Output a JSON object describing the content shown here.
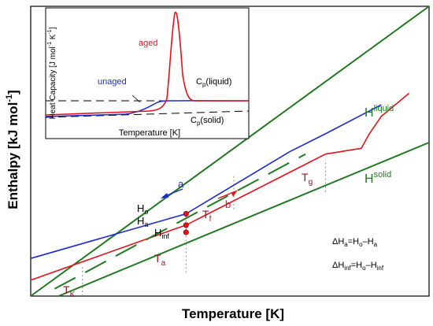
{
  "colors": {
    "blue": "#1a2bd6",
    "red": "#e3121b",
    "green": "#1f7a1f",
    "darkred": "#8b1a1a",
    "dash": "#000000"
  },
  "chart_data": [
    {
      "type": "line",
      "xlabel": "Temperature [K]",
      "ylabel": "Enthalpy [kJ mol",
      "ylabel_sup": "-1",
      "ylabel_end": "]",
      "xlim": [
        0,
        10
      ],
      "ylim": [
        0,
        10
      ],
      "series": [
        {
          "id": "H_liquid",
          "color": "green",
          "points": [
            [
              0.0,
              0.0
            ],
            [
              10.0,
              10.0
            ]
          ]
        },
        {
          "id": "H_solid",
          "color": "green",
          "points": [
            [
              0.7,
              0.0
            ],
            [
              10.0,
              5.3
            ]
          ]
        },
        {
          "id": "blue",
          "color": "blue",
          "points": [
            [
              0.0,
              1.3
            ],
            [
              3.9,
              2.84
            ],
            [
              6.5,
              4.98
            ],
            [
              7.4,
              5.6
            ],
            [
              8.8,
              6.6
            ]
          ]
        },
        {
          "id": "red",
          "color": "red",
          "points": [
            [
              0.0,
              0.55
            ],
            [
              3.9,
              2.45
            ],
            [
              7.4,
              4.9
            ],
            [
              8.3,
              5.1
            ],
            [
              8.5,
              5.6
            ],
            [
              8.8,
              6.2
            ],
            [
              9.5,
              7.0
            ]
          ]
        },
        {
          "id": "dashed_green",
          "color": "green",
          "dash": [
            30,
            14
          ],
          "points": [
            [
              0.6,
              0.25
            ],
            [
              6.9,
              4.9
            ]
          ]
        }
      ],
      "markers": [
        {
          "label": "H",
          "sub": "o",
          "x": 3.9,
          "y": 2.84,
          "color": "red"
        },
        {
          "label": "H",
          "sub": "a",
          "x": 3.9,
          "y": 2.45,
          "color": "red"
        },
        {
          "label": "H",
          "sub": "inf",
          "x": 3.9,
          "y": 2.2,
          "color": "red"
        }
      ],
      "guides": [
        {
          "x": 1.3,
          "y1": 0.0,
          "y2": 1.0
        },
        {
          "x": 3.9,
          "y1": 0.8,
          "y2": 2.8
        },
        {
          "x": 5.1,
          "y1": 3.0,
          "y2": 4.2
        },
        {
          "x": 7.4,
          "y1": 3.6,
          "y2": 4.7
        }
      ],
      "labels": [
        {
          "text": "T",
          "sub": "K",
          "x": 1.6,
          "y": 0.05
        },
        {
          "text": "T",
          "sub": "a",
          "x": 3.9,
          "y": 0.95
        },
        {
          "text": "T",
          "sub": "f",
          "x": 5.15,
          "y": 2.5
        },
        {
          "text": "T",
          "sub": "g",
          "x": 7.45,
          "y": 3.8
        }
      ],
      "annotations": {
        "a": "a",
        "b": "b",
        "H_liquid": "H",
        "H_liquid_sup": "liquid",
        "H_solid": "H",
        "H_solid_sup": "solid",
        "eq1_lhs": "ΔH",
        "eq1_sub": "a",
        "eq1_rhs": "=H",
        "eq1_o": "o",
        "eq1_minus": "–H",
        "eq1_a": "a",
        "eq2_lhs": "ΔH",
        "eq2_sub": "inf",
        "eq2_rhs": "=H",
        "eq2_o": "o",
        "eq2_minus": "–H",
        "eq2_inf": "inf"
      }
    },
    {
      "type": "line",
      "xlabel": "Temperature  [K]",
      "ylabel": "Heat Capacity  [J mol",
      "ylabel_sup1": "-1",
      "ylabel_mid": " K",
      "ylabel_sup2": "-1",
      "ylabel_end": "]",
      "series_labels": {
        "aged": "aged",
        "unaged": "unaged"
      },
      "cp_liquid": "C",
      "cp_liquid_sub": "p",
      "cp_liquid_rest": "(liquid)",
      "cp_solid": "C",
      "cp_solid_sub": "p",
      "cp_solid_rest": "(solid)"
    }
  ]
}
